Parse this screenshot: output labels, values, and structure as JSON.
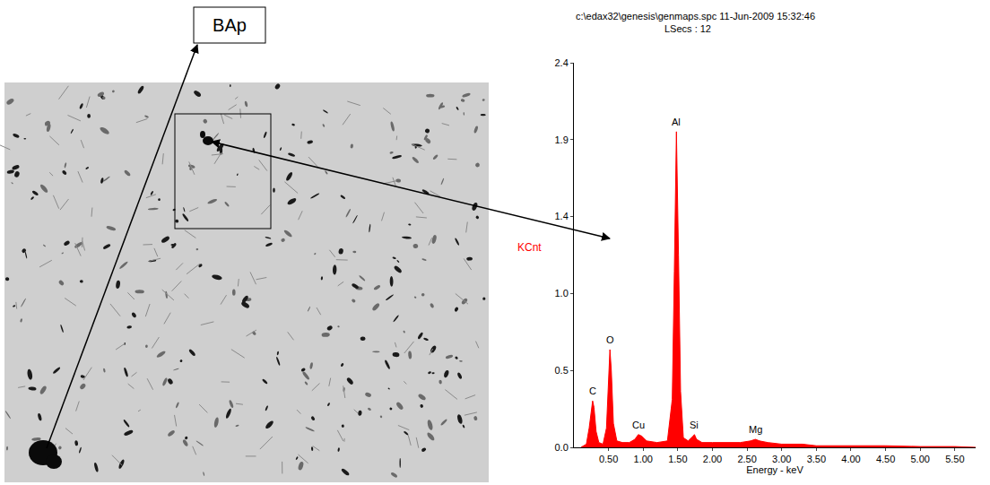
{
  "chart_data": {
    "type": "area",
    "header": "c:\\edax32\\genesis\\genmaps.spc 11-Jun-2009 15:32:46",
    "subheader": "LSecs : 12",
    "x_label": "Energy - keV",
    "y_label": "KCnt",
    "color": "#ff0000",
    "x": [
      0.1,
      0.18,
      0.22,
      0.25,
      0.27,
      0.29,
      0.32,
      0.36,
      0.42,
      0.47,
      0.5,
      0.52,
      0.54,
      0.57,
      0.62,
      0.7,
      0.8,
      0.88,
      0.93,
      0.98,
      1.05,
      1.2,
      1.35,
      1.42,
      1.45,
      1.48,
      1.51,
      1.54,
      1.58,
      1.65,
      1.72,
      1.74,
      1.77,
      1.85,
      2.0,
      2.2,
      2.4,
      2.55,
      2.62,
      2.68,
      2.8,
      3.0,
      3.3,
      3.5,
      4.0,
      4.5,
      5.0,
      5.5,
      5.8
    ],
    "values": [
      0.0,
      0.02,
      0.12,
      0.24,
      0.29,
      0.25,
      0.1,
      0.03,
      0.02,
      0.12,
      0.45,
      0.61,
      0.48,
      0.15,
      0.04,
      0.03,
      0.03,
      0.05,
      0.08,
      0.07,
      0.04,
      0.03,
      0.04,
      0.3,
      1.1,
      1.97,
      1.2,
      0.35,
      0.06,
      0.04,
      0.07,
      0.08,
      0.05,
      0.03,
      0.03,
      0.03,
      0.03,
      0.04,
      0.05,
      0.04,
      0.03,
      0.02,
      0.02,
      0.01,
      0.01,
      0.01,
      0.005,
      0.005,
      0.0
    ],
    "annotations": [
      {
        "text": "C",
        "x": 0.27,
        "y": 0.29
      },
      {
        "text": "O",
        "x": 0.52,
        "y": 0.61
      },
      {
        "text": "Cu",
        "x": 0.93,
        "y": 0.08
      },
      {
        "text": "Al",
        "x": 1.48,
        "y": 1.97
      },
      {
        "text": "Si",
        "x": 1.74,
        "y": 0.08
      },
      {
        "text": "Mg",
        "x": 2.62,
        "y": 0.05
      }
    ],
    "xlim": [
      0,
      5.8
    ],
    "xticks": [
      {
        "value": 0.5,
        "label": "0.50"
      },
      {
        "value": 1.0,
        "label": "1.00"
      },
      {
        "value": 1.5,
        "label": "1.50"
      },
      {
        "value": 2.0,
        "label": "2.00"
      },
      {
        "value": 2.5,
        "label": "2.50"
      },
      {
        "value": 3.0,
        "label": "3.00"
      },
      {
        "value": 3.5,
        "label": "3.50"
      },
      {
        "value": 4.0,
        "label": "4.00"
      },
      {
        "value": 4.5,
        "label": "4.50"
      },
      {
        "value": 5.0,
        "label": "5.00"
      },
      {
        "value": 5.5,
        "label": "5.50"
      }
    ],
    "ylim": [
      0,
      2.4
    ],
    "yticks": [
      {
        "value": 0,
        "label": "0.0"
      },
      {
        "value": 0.48,
        "label": "0.5"
      },
      {
        "value": 0.96,
        "label": "1.0"
      },
      {
        "value": 1.44,
        "label": "1.4"
      },
      {
        "value": 1.92,
        "label": "1.9"
      },
      {
        "value": 2.4,
        "label": "2.4"
      }
    ],
    "grid": false
  },
  "image": {
    "label": "BAp"
  }
}
